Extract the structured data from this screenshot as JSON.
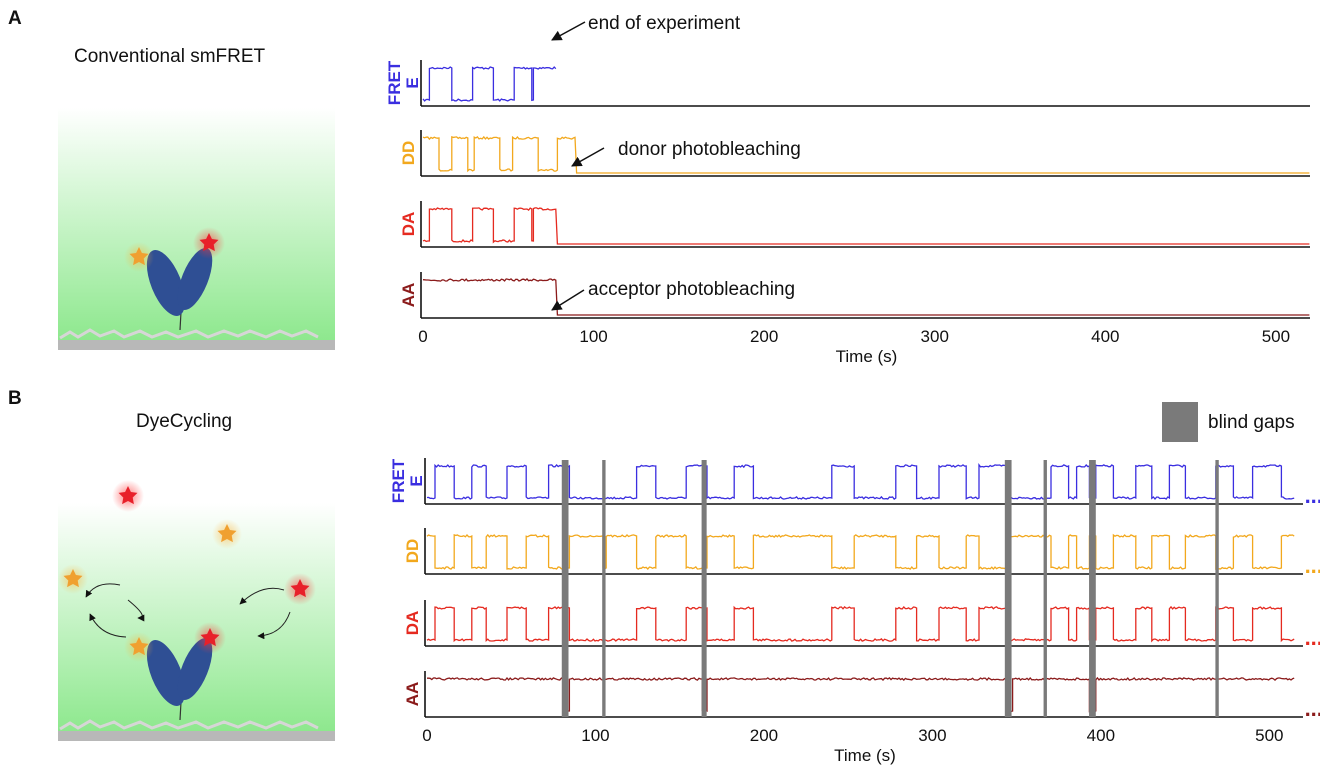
{
  "panels": {
    "a": {
      "letter": "A",
      "title": "Conventional smFRET"
    },
    "b": {
      "letter": "B",
      "title": "DyeCycling"
    }
  },
  "colors": {
    "fret": "#3a2ee0",
    "dd": "#f2a81d",
    "da": "#e52a20",
    "aa": "#8b1b1b",
    "gap": "#7a7a7a",
    "protein": "#2f4f94",
    "donor_dye": "#f0a030",
    "acceptor_dye": "#e8202a",
    "surface": "#b8b8b8"
  },
  "icons": {
    "donor": "donor-star-icon",
    "acceptor": "acceptor-star-icon",
    "protein": "protein-v-icon",
    "exchange": "exchange-arrow-icon"
  },
  "chart_data": [
    {
      "type": "line",
      "panel": "A",
      "xlabel": "Time (s)",
      "xlim": [
        0,
        520
      ],
      "xticks": [
        0,
        100,
        200,
        300,
        400,
        500
      ],
      "rows": [
        {
          "name": "FRET E",
          "label_line1": "FRET",
          "label_line2": "E",
          "color_key": "fret",
          "high_segments": [
            [
              3,
              16
            ],
            [
              29,
              41
            ],
            [
              53,
              63
            ],
            [
              64,
              78
            ]
          ],
          "end": 78,
          "note": "FRET trace ends at acceptor photobleaching"
        },
        {
          "name": "DD",
          "label_line1": "DD",
          "label_line2": "",
          "color_key": "dd",
          "high_segments": [
            [
              0,
              9
            ],
            [
              16,
              26
            ],
            [
              30,
              45
            ],
            [
              52,
              67
            ],
            [
              78,
              90
            ]
          ],
          "end": 520,
          "bleach": 90
        },
        {
          "name": "DA",
          "label_line1": "DA",
          "label_line2": "",
          "color_key": "da",
          "high_segments": [
            [
              3,
              16
            ],
            [
              29,
              41
            ],
            [
              53,
              63
            ],
            [
              64,
              78
            ]
          ],
          "end": 520,
          "bleach": 78
        },
        {
          "name": "AA",
          "label_line1": "AA",
          "label_line2": "",
          "color_key": "aa",
          "high_segments": [
            [
              0,
              78
            ]
          ],
          "end": 520,
          "bleach": 78
        }
      ],
      "annotations": [
        {
          "row": 0,
          "text": "end of experiment"
        },
        {
          "row": 1,
          "text": "donor photobleaching"
        },
        {
          "row": 3,
          "text": "acceptor photobleaching"
        }
      ]
    },
    {
      "type": "line",
      "panel": "B",
      "xlabel": "Time (s)",
      "xlim": [
        0,
        520
      ],
      "xticks": [
        0,
        100,
        200,
        300,
        400,
        500
      ],
      "legend": {
        "label": "blind gaps",
        "position": "top-right"
      },
      "blind_gaps": [
        [
          80,
          84
        ],
        [
          104,
          106
        ],
        [
          163,
          166
        ],
        [
          343,
          347
        ],
        [
          366,
          368
        ],
        [
          393,
          397
        ],
        [
          468,
          470
        ]
      ],
      "continuation": "...",
      "rows": [
        {
          "name": "FRET E",
          "label_line1": "FRET",
          "label_line2": "E",
          "color_key": "fret",
          "high_segments": [
            [
              4,
              16
            ],
            [
              26,
              35
            ],
            [
              47,
              58
            ],
            [
              72,
              84
            ],
            [
              124,
              135
            ],
            [
              153,
              166
            ],
            [
              182,
              193
            ],
            [
              240,
              253
            ],
            [
              278,
              290
            ],
            [
              303,
              320
            ],
            [
              327,
              345
            ],
            [
              370,
              380
            ],
            [
              385,
              393
            ],
            [
              397,
              407
            ],
            [
              420,
              430
            ],
            [
              440,
              450
            ],
            [
              468,
              478
            ],
            [
              490,
              507
            ]
          ],
          "end": 515
        },
        {
          "name": "DD",
          "label_line1": "DD",
          "label_line2": "",
          "color_key": "dd",
          "high_segments": [
            [
              0,
              4
            ],
            [
              16,
              26
            ],
            [
              35,
              47
            ],
            [
              58,
              72
            ],
            [
              84,
              104
            ],
            [
              106,
              124
            ],
            [
              135,
              153
            ],
            [
              166,
              182
            ],
            [
              193,
              240
            ],
            [
              253,
              278
            ],
            [
              290,
              303
            ],
            [
              320,
              327
            ],
            [
              345,
              370
            ],
            [
              380,
              385
            ],
            [
              393,
              397
            ],
            [
              407,
              420
            ],
            [
              430,
              440
            ],
            [
              450,
              468
            ],
            [
              478,
              490
            ],
            [
              507,
              515
            ]
          ],
          "end": 515
        },
        {
          "name": "DA",
          "label_line1": "DA",
          "label_line2": "",
          "color_key": "da",
          "high_segments": [
            [
              4,
              16
            ],
            [
              26,
              35
            ],
            [
              47,
              58
            ],
            [
              72,
              84
            ],
            [
              124,
              135
            ],
            [
              153,
              166
            ],
            [
              182,
              193
            ],
            [
              240,
              253
            ],
            [
              278,
              290
            ],
            [
              303,
              320
            ],
            [
              327,
              345
            ],
            [
              370,
              380
            ],
            [
              385,
              393
            ],
            [
              397,
              407
            ],
            [
              420,
              430
            ],
            [
              440,
              450
            ],
            [
              468,
              478
            ],
            [
              490,
              507
            ]
          ],
          "end": 515
        },
        {
          "name": "AA",
          "label_line1": "AA",
          "label_line2": "",
          "color_key": "aa",
          "high_segments": [
            [
              0,
              80
            ],
            [
              84,
              163
            ],
            [
              166,
              343
            ],
            [
              347,
              393
            ],
            [
              397,
              515
            ]
          ],
          "end": 515
        }
      ]
    }
  ]
}
